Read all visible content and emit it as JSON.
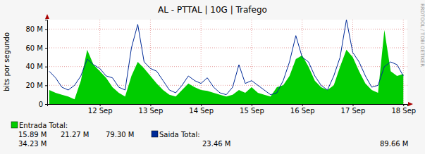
{
  "chart_data": {
    "type": "area",
    "title": "AL - PTTAL | 10G | Trafego",
    "y_label": "bits por segundo",
    "annotations": [
      "RRDTOOL / TOBI OETIKER"
    ],
    "x": [
      11.5,
      11.625,
      11.75,
      11.875,
      12,
      12.125,
      12.25,
      12.375,
      12.5,
      12.625,
      12.75,
      12.875,
      13,
      13.125,
      13.25,
      13.375,
      13.5,
      13.625,
      13.75,
      13.875,
      14,
      14.125,
      14.25,
      14.375,
      14.5,
      14.625,
      14.75,
      14.875,
      15,
      15.125,
      15.25,
      15.375,
      15.5,
      15.625,
      15.75,
      15.875,
      16,
      16.125,
      16.25,
      16.375,
      16.5,
      16.625,
      16.75,
      16.875,
      17,
      17.125,
      17.25,
      17.375,
      17.5,
      17.625,
      17.75,
      17.875,
      18,
      18.125,
      18.25,
      18.375,
      18.5
    ],
    "series": [
      {
        "name": "Entrada Total:",
        "type": "area",
        "color": "#00cc00",
        "stats": [
          "15.89 M",
          "21.27 M",
          "79.30 M"
        ],
        "values": [
          15,
          12,
          10,
          8,
          5,
          25,
          58,
          42,
          35,
          28,
          18,
          12,
          8,
          30,
          45,
          38,
          30,
          22,
          15,
          10,
          8,
          15,
          22,
          18,
          15,
          14,
          12,
          10,
          8,
          10,
          15,
          12,
          18,
          12,
          10,
          8,
          18,
          20,
          30,
          48,
          52,
          40,
          25,
          18,
          15,
          20,
          40,
          58,
          50,
          35,
          22,
          15,
          12,
          79,
          35,
          30,
          32
        ]
      },
      {
        "name": "Saida Total:",
        "type": "line",
        "color": "#002a97",
        "stats": [
          "34.23 M",
          "23.46 M",
          "89.66 M"
        ],
        "values": [
          35,
          28,
          18,
          15,
          20,
          30,
          48,
          42,
          38,
          30,
          28,
          18,
          15,
          60,
          85,
          45,
          38,
          35,
          25,
          15,
          12,
          20,
          30,
          25,
          22,
          28,
          18,
          12,
          10,
          18,
          42,
          22,
          25,
          20,
          15,
          10,
          12,
          25,
          45,
          73,
          50,
          45,
          30,
          20,
          15,
          30,
          50,
          90,
          55,
          45,
          30,
          18,
          20,
          40,
          45,
          42,
          30
        ]
      }
    ],
    "xlim": [
      11.46,
      18.58
    ],
    "xticks": [
      {
        "value": 12.5,
        "label": "12 Sep"
      },
      {
        "value": 13.5,
        "label": "13 Sep"
      },
      {
        "value": 14.5,
        "label": "14 Sep"
      },
      {
        "value": 15.5,
        "label": "15 Sep"
      },
      {
        "value": 16.5,
        "label": "16 Sep"
      },
      {
        "value": 17.5,
        "label": "17 Sep"
      },
      {
        "value": 18.5,
        "label": "18 Sep"
      }
    ],
    "ylim": [
      0,
      90
    ],
    "yticks": [
      0,
      {
        "value": 20,
        "label": "20 M"
      },
      {
        "value": 40,
        "label": "40 M"
      },
      {
        "value": 60,
        "label": "60 M"
      },
      {
        "value": 80,
        "label": "80 M"
      }
    ],
    "grid": true,
    "legend": "bottom"
  }
}
